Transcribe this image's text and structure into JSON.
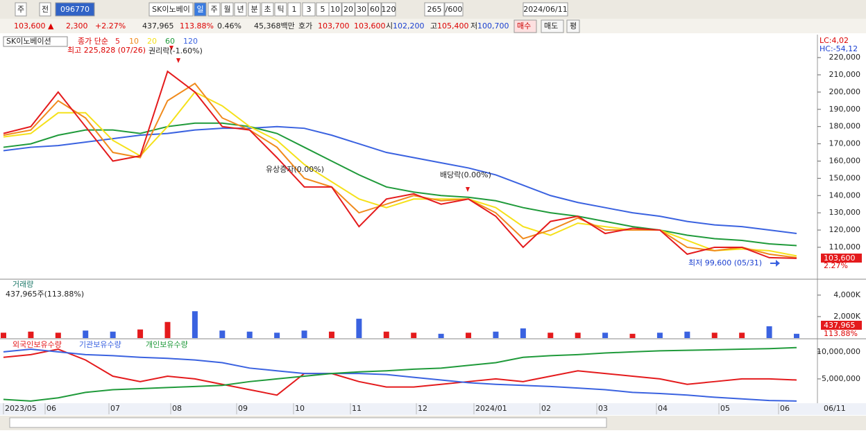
{
  "toolbar": {
    "items": [
      "주",
      "전",
      "096770",
      "SK이노베이",
      "일",
      "주",
      "월",
      "년",
      "분",
      "초",
      "틱",
      "1",
      "3",
      "5",
      "10",
      "20",
      "30",
      "60",
      "120",
      "265",
      "/600",
      "2024/06/11"
    ]
  },
  "quote": {
    "items": [
      "103,600 ▲",
      "2,300",
      "+2.27%",
      "437,965",
      "113.88%",
      "0.46%",
      "45,368백만",
      "호가",
      "103,700",
      "103,600",
      "시",
      "102,200",
      "고",
      "105,400",
      "저",
      "100,700",
      "매수",
      "매도",
      "평"
    ]
  },
  "price_chart": {
    "type": "line",
    "title": "SK이노베이션",
    "ma_label": "종가 단순",
    "series": [
      {
        "name": "5",
        "color": "#e41a1c",
        "values": [
          176000,
          180000,
          200000,
          180000,
          160000,
          163000,
          212000,
          200000,
          180000,
          178000,
          162000,
          145000,
          145000,
          122000,
          138000,
          141000,
          135000,
          138000,
          128000,
          110000,
          125000,
          128000,
          118000,
          121000,
          120000,
          106000,
          110000,
          110000,
          104000,
          103600
        ]
      },
      {
        "name": "10",
        "color": "#f08a1c",
        "values": [
          175000,
          178000,
          195000,
          185000,
          165000,
          162000,
          195000,
          205000,
          185000,
          178000,
          168000,
          150000,
          145000,
          130000,
          135000,
          140000,
          137000,
          138000,
          130000,
          115000,
          120000,
          127000,
          120000,
          120000,
          120000,
          110000,
          108000,
          110000,
          106000,
          104000
        ]
      },
      {
        "name": "20",
        "color": "#f5e11a",
        "values": [
          174000,
          176000,
          188000,
          188000,
          172000,
          163000,
          180000,
          200000,
          192000,
          180000,
          172000,
          158000,
          148000,
          138000,
          133000,
          138000,
          138000,
          138000,
          133000,
          122000,
          117000,
          124000,
          122000,
          120000,
          120000,
          114000,
          108000,
          109000,
          108000,
          105000
        ]
      },
      {
        "name": "60",
        "color": "#1f9a3a",
        "values": [
          168000,
          170000,
          175000,
          178000,
          178000,
          176000,
          180000,
          182000,
          182000,
          180000,
          176000,
          168000,
          160000,
          152000,
          145000,
          142000,
          140000,
          139000,
          137000,
          133000,
          130000,
          128000,
          125000,
          122000,
          120000,
          117000,
          115000,
          114000,
          112000,
          111000
        ]
      },
      {
        "name": "120",
        "color": "#3a62e0",
        "values": [
          166000,
          168000,
          169000,
          171000,
          173000,
          175000,
          176000,
          178000,
          179000,
          179000,
          180000,
          179000,
          175000,
          170000,
          165000,
          162000,
          159000,
          156000,
          152000,
          146000,
          140000,
          136000,
          133000,
          130000,
          128000,
          125000,
          123000,
          122000,
          120000,
          118000
        ]
      }
    ],
    "ylim": [
      91500,
      232500
    ],
    "yticks": [
      {
        "value": 110000,
        "label": "110,000"
      },
      {
        "value": 120000,
        "label": "120,000"
      },
      {
        "value": 130000,
        "label": "130,000"
      },
      {
        "value": 140000,
        "label": "140,000"
      },
      {
        "value": 150000,
        "label": "150,000"
      },
      {
        "value": 160000,
        "label": "160,000"
      },
      {
        "value": 170000,
        "label": "170,000"
      },
      {
        "value": 180000,
        "label": "180,000"
      },
      {
        "value": 190000,
        "label": "190,000"
      },
      {
        "value": 200000,
        "label": "200,000"
      },
      {
        "value": 210000,
        "label": "210,000"
      },
      {
        "value": 220000,
        "label": "220,000"
      }
    ],
    "annotations": [
      "최고 225,828 (07/26)",
      "권리락(-1.60%)",
      "유상증자(0.00%)",
      "배당락(0.00%)",
      "최저 99,600 (05/31)"
    ],
    "lc": "LC:4,02",
    "hc": "HC:-54,12",
    "last": "103,600",
    "change": "2.27%"
  },
  "volume_chart": {
    "type": "bar",
    "title": "거래량",
    "summary": "437,965주(113.88%)",
    "values": [
      500,
      600,
      500,
      700,
      600,
      800,
      1500,
      2500,
      700,
      600,
      500,
      700,
      600,
      1800,
      600,
      500,
      400,
      500,
      600,
      900,
      500,
      500,
      500,
      400,
      500,
      600,
      500,
      500,
      1100,
      400
    ],
    "ylim": [
      0,
      5350
    ],
    "yticks": [
      {
        "value": 2000,
        "label": "2,000K"
      },
      {
        "value": 4000,
        "label": "4,000K"
      }
    ],
    "last": "437,965",
    "ratio": "113.88%"
  },
  "holdings_chart": {
    "type": "line",
    "series": [
      {
        "name": "외국인보유수량",
        "color": "#e41a1c",
        "values": [
          9000000,
          9500000,
          10500000,
          8500000,
          5500000,
          4500000,
          5500000,
          5000000,
          4000000,
          3000000,
          2000000,
          6000000,
          6000000,
          4500000,
          3500000,
          3500000,
          4000000,
          4500000,
          5000000,
          4500000,
          5500000,
          6500000,
          6000000,
          5500000,
          5000000,
          4000000,
          4500000,
          5000000,
          5000000,
          4800000
        ]
      },
      {
        "name": "기관보유수량",
        "color": "#3a62e0",
        "values": [
          10000000,
          10500000,
          10000000,
          9500000,
          9300000,
          9000000,
          8800000,
          8500000,
          8000000,
          7000000,
          6500000,
          6000000,
          6000000,
          6000000,
          5800000,
          5300000,
          4800000,
          4300000,
          4000000,
          3800000,
          3600000,
          3300000,
          3000000,
          2500000,
          2300000,
          2000000,
          1600000,
          1300000,
          1000000,
          900000
        ]
      },
      {
        "name": "개인보유수량",
        "color": "#1f9a3a",
        "values": [
          1200000,
          900000,
          1500000,
          2500000,
          3000000,
          3200000,
          3400000,
          3600000,
          3800000,
          4500000,
          5000000,
          5500000,
          6000000,
          6300000,
          6500000,
          6800000,
          7000000,
          7500000,
          8000000,
          9000000,
          9300000,
          9500000,
          9800000,
          10000000,
          10200000,
          10300000,
          10400000,
          10500000,
          10600000,
          10800000
        ]
      }
    ],
    "ylim": [
      500000,
      12300000
    ],
    "yticks": [
      {
        "value": 5000000,
        "label": "5,000,000"
      },
      {
        "value": 10000000,
        "label": "10,000,000"
      }
    ]
  },
  "x_axis": {
    "labels": [
      "2023/05",
      "06",
      "07",
      "08",
      "09",
      "10",
      "11",
      "12",
      "2024/01",
      "02",
      "03",
      "04",
      "05",
      "06"
    ],
    "end": "06/11"
  }
}
